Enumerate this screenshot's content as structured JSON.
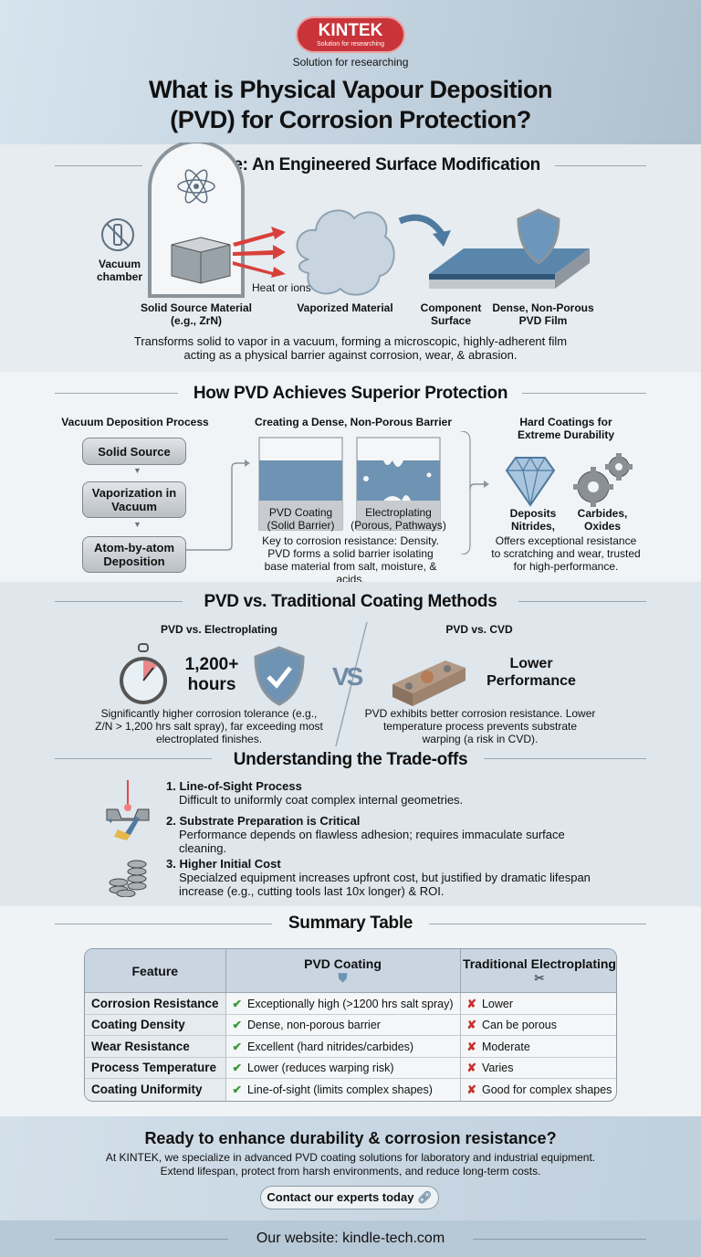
{
  "header": {
    "logo_text": "KINTEK",
    "logo_sub": "Solution for researching",
    "tagline": "Solution for researching",
    "title_line1": "What is Physical Vapour Deposition",
    "title_line2": "(PVD) for Corrosion Protection?"
  },
  "core": {
    "heading": "At its core: An Engineered Surface Modification",
    "vacuum_label": "Vacuum chamber",
    "heat_label": "Heat or ions",
    "source_label": "Solid Source Material (e.g., ZrN)",
    "vapor_label": "Vaporized Material",
    "component_label": "Component Surface",
    "film_label": "Dense, Non-Porous PVD Film",
    "description": "Transforms solid to vapor in a vacuum, forming a microscopic, highly-adherent film acting as a physical barrier against corrosion, wear, & abrasion."
  },
  "how": {
    "heading": "How PVD Achieves Superior Protection",
    "process_title": "Vacuum Deposition Process",
    "steps": [
      "Solid Source",
      "Vaporization in Vacuum",
      "Atom-by-atom Deposition"
    ],
    "barrier_title": "Creating a Dense, Non-Porous Barrier",
    "pvd_label": "PVD Coating (Solid Barrier)",
    "ep_label": "Electroplating (Porous, Pathways)",
    "barrier_desc": "Key to corrosion resistance: Density. PVD forms a solid barrier isolating base material from salt, moisture, & acids.",
    "hard_title": "Hard Coatings for Extreme Durability",
    "deposits_label": "Deposits Nitrides,",
    "carbides_label": "Carbides, Oxides",
    "hard_desc": "Offers exceptional resistance to scratching and wear, trusted for high-performance."
  },
  "compare": {
    "heading": "PVD vs. Traditional Coating Methods",
    "left_title": "PVD vs. Electroplating",
    "hours_value": "1,200+",
    "hours_unit": "hours",
    "left_desc": "Significantly higher corrosion tolerance (e.g., Z/N > 1,200 hrs salt spray), far exceeding most electroplated finishes.",
    "vs": "VS",
    "right_title": "PVD vs. CVD",
    "right_big": "Lower Performance",
    "right_desc": "PVD exhibits better corrosion resistance. Lower temperature process prevents substrate warping (a risk in CVD)."
  },
  "tradeoffs": {
    "heading": "Understanding the Trade-offs",
    "items": [
      {
        "title": "1. Line-of-Sight Process",
        "desc": "Difficult to uniformly coat complex internal geometries.",
        "icon": "laser-icon"
      },
      {
        "title": "2. Substrate Preparation is Critical",
        "desc": "Performance depends on flawless adhesion; requires immaculate surface cleaning.",
        "icon": "brush-icon"
      },
      {
        "title": "3. Higher Initial Cost",
        "desc": "Specialzed equipment increases upfront cost, but justified by dramatic lifespan increase (e.g., cutting tools last 10x longer) & ROI.",
        "icon": "coins-icon"
      }
    ]
  },
  "summary": {
    "heading": "Summary Table",
    "columns": [
      "Feature",
      "PVD Coating",
      "Traditional Electroplating"
    ],
    "rows": [
      [
        "Corrosion Resistance",
        "Exceptionally high (>1200 hrs salt spray)",
        "Lower"
      ],
      [
        "Coating Density",
        "Dense, non-porous barrier",
        "Can be porous"
      ],
      [
        "Wear Resistance",
        "Excellent (hard nitrides/carbides)",
        "Moderate"
      ],
      [
        "Process Temperature",
        "Lower (reduces warping risk)",
        "Varies"
      ],
      [
        "Coating Uniformity",
        "Line-of-sight (limits complex shapes)",
        "Good for complex shapes"
      ]
    ]
  },
  "cta": {
    "heading": "Ready to enhance durability & corrosion resistance?",
    "line1": "At KINTEK, we specialize in advanced PVD coating solutions for laboratory and industrial equipment.",
    "line2": "Extend lifespan, protect from harsh environments, and reduce long-term costs.",
    "button": "Contact our experts today"
  },
  "footer": {
    "text": "Our website: kindle-tech.com"
  },
  "colors": {
    "brand": "#c8343a",
    "accent": "#4f7aa0",
    "check": "#3a9a3a",
    "cross": "#c8302a"
  }
}
